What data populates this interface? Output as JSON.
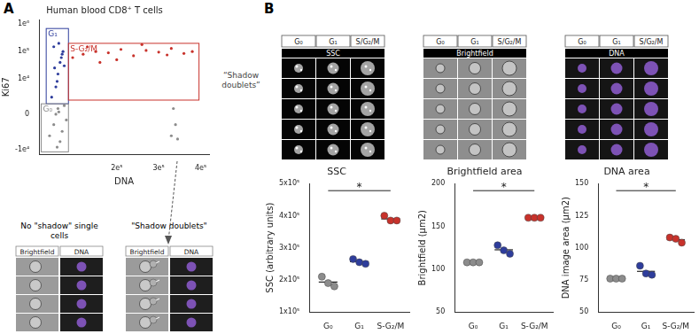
{
  "chart_data": [
    {
      "type": "scatter",
      "title": "Human blood CD8⁺ T cells",
      "x_label": "DNA",
      "y_label": "Ki67",
      "log": "y",
      "grid": false,
      "xlim": [
        15000,
        420000
      ],
      "xticks": [
        {
          "value": 200000,
          "label": "2e⁵"
        },
        {
          "value": 300000,
          "label": "3e⁵"
        },
        {
          "value": 400000,
          "label": "4e⁵"
        }
      ],
      "ylim": [
        -15000,
        1500000
      ],
      "yticks": [
        {
          "value": -10000,
          "label": "-1e⁴"
        },
        0,
        {
          "value": 10000,
          "label": "1e⁴"
        },
        {
          "value": 100000,
          "label": "1e⁵"
        },
        {
          "value": 1000000,
          "label": "1e⁶"
        }
      ],
      "gates": [
        {
          "name": "G₁",
          "color": "#2e3d9c",
          "x": [
            32000,
            85000
          ],
          "y": [
            1000,
            700000
          ],
          "points": {
            "x": [
              45000,
              55000,
              60000,
              65000,
              70000,
              50000,
              75000,
              58000,
              62000,
              68000,
              52000,
              72000
            ],
            "y": [
              2000,
              5000,
              15000,
              40000,
              80000,
              150000,
              30000,
              8000,
              200000,
              60000,
              25000,
              100000
            ]
          }
        },
        {
          "name": "S-G₂/M",
          "color": "#c8322b",
          "x": [
            85000,
            396000
          ],
          "y": [
            1500,
            200000
          ],
          "points": {
            "x": [
              95000,
              120000,
              150000,
              180000,
              210000,
              240000,
              270000,
              300000,
              330000,
              360000,
              130000,
              200000,
              260000,
              320000,
              380000,
              160000
            ],
            "y": [
              60000,
              80000,
              100000,
              90000,
              120000,
              70000,
              110000,
              95000,
              130000,
              85000,
              150000,
              50000,
              180000,
              75000,
              100000,
              40000
            ]
          }
        },
        {
          "name": "G₀",
          "color": "#8c8c8c",
          "x": [
            20000,
            85000
          ],
          "y": [
            -12000,
            1000
          ],
          "points": {
            "x": [
              40000,
              50000,
              55000,
              60000,
              65000,
              70000,
              75000,
              80000,
              58000,
              62000
            ],
            "y": [
              -3000,
              -1000,
              0,
              500,
              -5000,
              -2000,
              800,
              -500,
              -8000,
              200
            ]
          }
        }
      ],
      "annotation": {
        "text": "“Shadow doublets”",
        "color": "#8c8c8c",
        "points": {
          "x": [
            330000,
            340000,
            345000,
            335000
          ],
          "y": [
            -3000,
            -1000,
            -4000,
            500
          ]
        }
      }
    },
    {
      "type": "strip",
      "title": "SSC",
      "y_label": "SSC (arbitrary units)",
      "categories": [
        "G₀",
        "G₁",
        "S-G₂/M"
      ],
      "colors": [
        "#8c8c8c",
        "#2e3d9c",
        "#c8322b"
      ],
      "values": [
        [
          210000,
          190000,
          180000
        ],
        [
          265000,
          255000,
          250000
        ],
        [
          400000,
          385000,
          385000
        ]
      ],
      "ylim": [
        100000,
        500000
      ],
      "yticks": [
        {
          "value": 100000,
          "label": "1x10⁵"
        },
        {
          "value": 200000,
          "label": "2x10⁵"
        },
        {
          "value": 300000,
          "label": "3x10⁵"
        },
        {
          "value": 400000,
          "label": "4x10⁵"
        },
        {
          "value": 500000,
          "label": "5x10⁵"
        }
      ],
      "annotation": "*"
    },
    {
      "type": "strip",
      "title": "Brightfield area",
      "y_label": "Brightfield (µm2)",
      "categories": [
        "G₀",
        "G₁",
        "S-G₂/M"
      ],
      "colors": [
        "#8c8c8c",
        "#2e3d9c",
        "#c8322b"
      ],
      "values": [
        [
          108,
          108,
          108
        ],
        [
          128,
          122,
          118
        ],
        [
          160,
          160,
          160
        ]
      ],
      "ylim": [
        50,
        200
      ],
      "yticks": [
        50,
        100,
        150,
        200
      ],
      "annotation": "*"
    },
    {
      "type": "strip",
      "title": "DNA area",
      "y_label": "DNA image area (µm2)",
      "categories": [
        "G₀",
        "G₁",
        "S-G₂/M"
      ],
      "colors": [
        "#8c8c8c",
        "#2e3d9c",
        "#c8322b"
      ],
      "values": [
        [
          76,
          76,
          76
        ],
        [
          86,
          80,
          79
        ],
        [
          108,
          107,
          104
        ]
      ],
      "ylim": [
        50,
        150
      ],
      "yticks": [
        50,
        75,
        100,
        125,
        150
      ],
      "annotation": "*"
    }
  ],
  "image_panels": {
    "panel_labels": [
      "A",
      "B"
    ],
    "doublet_images": [
      {
        "title": "No \"shadow\" single cells",
        "columns": [
          "Brightfield",
          "DNA"
        ]
      },
      {
        "title": "\"Shadow doublets\"",
        "columns": [
          "Brightfield",
          "DNA"
        ]
      }
    ],
    "cell_cycle_images": {
      "columns": [
        "G₀",
        "G₁",
        "S/G₂/M"
      ],
      "channels": [
        "SSC",
        "Brightfield",
        "DNA"
      ]
    }
  }
}
